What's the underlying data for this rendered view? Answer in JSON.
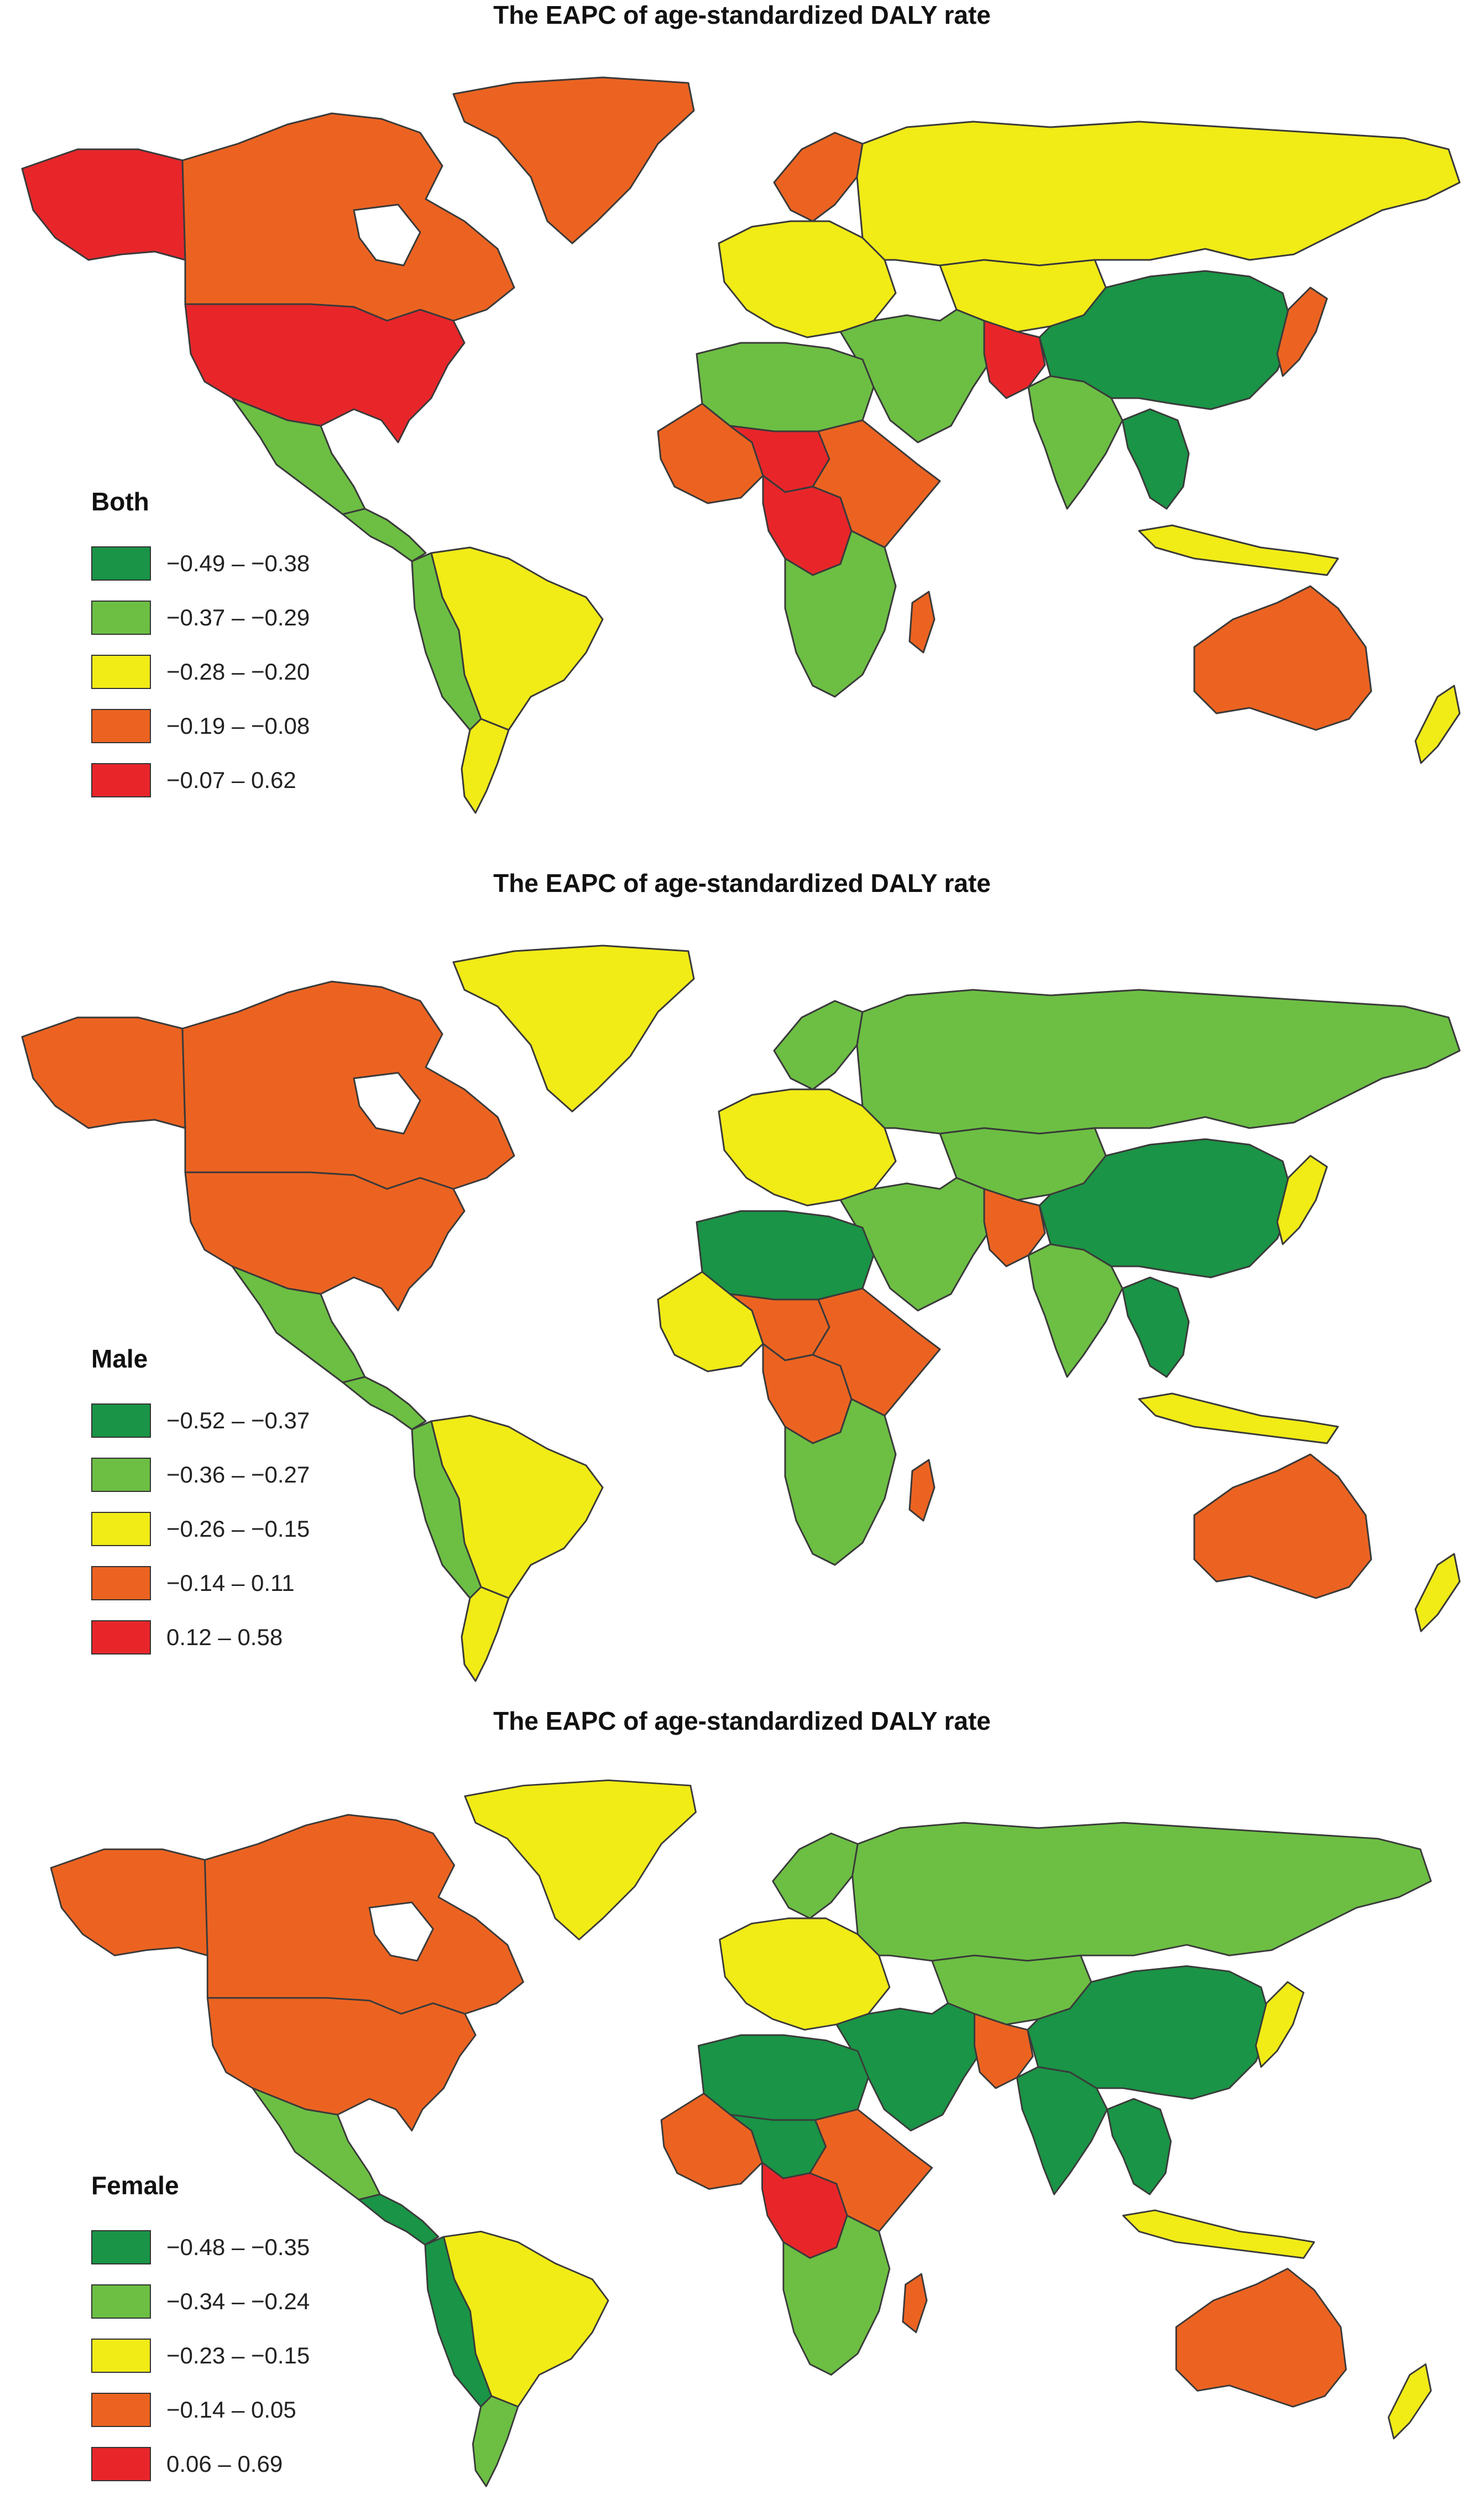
{
  "colors": {
    "dark_green": "#1a9446",
    "light_green": "#6cbf43",
    "yellow": "#f1eb16",
    "orange": "#ec6321",
    "red": "#e8262a"
  },
  "panels": [
    {
      "title": "The EAPC of age-standardized DALY rate",
      "legend_title": "Both",
      "legend": [
        {
          "label": "−0.49 – −0.38",
          "color": "#1a9446"
        },
        {
          "label": "−0.37 – −0.29",
          "color": "#6cbf43"
        },
        {
          "label": "−0.28 – −0.20",
          "color": "#f1eb16"
        },
        {
          "label": "−0.19 – −0.08",
          "color": "#ec6321"
        },
        {
          "label": "−0.07 – 0.62",
          "color": "#e8262a"
        }
      ],
      "regions": {
        "greenland": "#ec6321",
        "alaska": "#e8262a",
        "canada": "#ec6321",
        "usa": "#e8262a",
        "mexico": "#6cbf43",
        "central_america": "#6cbf43",
        "south_america_north": "#f1eb16",
        "south_america_west": "#6cbf43",
        "south_america_south": "#f1eb16",
        "europe_north": "#ec6321",
        "europe": "#f1eb16",
        "russia": "#f1eb16",
        "north_africa": "#6cbf43",
        "west_africa": "#ec6321",
        "sahel": "#e8262a",
        "east_africa": "#ec6321",
        "central_africa": "#e8262a",
        "southern_africa": "#6cbf43",
        "middle_east": "#6cbf43",
        "afghanistan": "#e8262a",
        "india": "#6cbf43",
        "central_asia": "#f1eb16",
        "china": "#1a9446",
        "southeast_asia": "#1a9446",
        "japan": "#ec6321",
        "indonesia": "#f1eb16",
        "australia": "#ec6321",
        "new_zealand": "#f1eb16"
      }
    },
    {
      "title": "The EAPC of age-standardized DALY rate",
      "legend_title": "Male",
      "legend": [
        {
          "label": "−0.52 – −0.37",
          "color": "#1a9446"
        },
        {
          "label": "−0.36 – −0.27",
          "color": "#6cbf43"
        },
        {
          "label": "−0.26 – −0.15",
          "color": "#f1eb16"
        },
        {
          "label": "−0.14 – 0.11",
          "color": "#ec6321"
        },
        {
          "label": "0.12 – 0.58",
          "color": "#e8262a"
        }
      ],
      "regions": {
        "greenland": "#f1eb16",
        "alaska": "#ec6321",
        "canada": "#ec6321",
        "usa": "#ec6321",
        "mexico": "#6cbf43",
        "central_america": "#6cbf43",
        "south_america_north": "#f1eb16",
        "south_america_west": "#6cbf43",
        "south_america_south": "#f1eb16",
        "europe_north": "#6cbf43",
        "europe": "#f1eb16",
        "russia": "#6cbf43",
        "north_africa": "#1a9446",
        "west_africa": "#f1eb16",
        "sahel": "#ec6321",
        "east_africa": "#ec6321",
        "central_africa": "#ec6321",
        "southern_africa": "#6cbf43",
        "middle_east": "#6cbf43",
        "afghanistan": "#ec6321",
        "india": "#6cbf43",
        "central_asia": "#6cbf43",
        "china": "#1a9446",
        "southeast_asia": "#1a9446",
        "japan": "#f1eb16",
        "indonesia": "#f1eb16",
        "australia": "#ec6321",
        "new_zealand": "#f1eb16"
      }
    },
    {
      "title": "The EAPC of age-standardized DALY rate",
      "legend_title": "Female",
      "legend": [
        {
          "label": "−0.48 – −0.35",
          "color": "#1a9446"
        },
        {
          "label": "−0.34 – −0.24",
          "color": "#6cbf43"
        },
        {
          "label": "−0.23 – −0.15",
          "color": "#f1eb16"
        },
        {
          "label": "−0.14 – 0.05",
          "color": "#ec6321"
        },
        {
          "label": "0.06 – 0.69",
          "color": "#e8262a"
        }
      ],
      "regions": {
        "greenland": "#f1eb16",
        "alaska": "#ec6321",
        "canada": "#ec6321",
        "usa": "#ec6321",
        "mexico": "#6cbf43",
        "central_america": "#1a9446",
        "south_america_north": "#f1eb16",
        "south_america_west": "#1a9446",
        "south_america_south": "#6cbf43",
        "europe_north": "#6cbf43",
        "europe": "#f1eb16",
        "russia": "#6cbf43",
        "north_africa": "#1a9446",
        "west_africa": "#ec6321",
        "sahel": "#1a9446",
        "east_africa": "#ec6321",
        "central_africa": "#e8262a",
        "southern_africa": "#6cbf43",
        "middle_east": "#1a9446",
        "afghanistan": "#ec6321",
        "india": "#1a9446",
        "central_asia": "#6cbf43",
        "china": "#1a9446",
        "southeast_asia": "#1a9446",
        "japan": "#f1eb16",
        "indonesia": "#f1eb16",
        "australia": "#ec6321",
        "new_zealand": "#f1eb16"
      }
    }
  ]
}
